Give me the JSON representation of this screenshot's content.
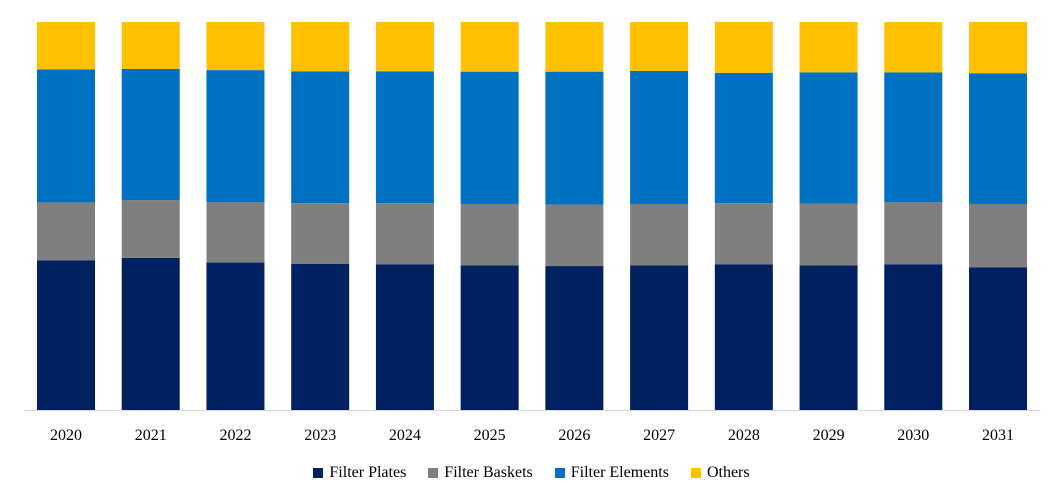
{
  "chart_data": {
    "type": "bar",
    "stacked": true,
    "normalized": true,
    "title": "",
    "xlabel": "",
    "ylabel": "",
    "ylim": [
      0,
      100
    ],
    "grid": false,
    "legend_position": "bottom",
    "categories": [
      "2020",
      "2021",
      "2022",
      "2023",
      "2024",
      "2025",
      "2026",
      "2027",
      "2028",
      "2029",
      "2030",
      "2031"
    ],
    "series": [
      {
        "name": "Filter Plates",
        "color": "#002060",
        "values": [
          38.6,
          39.2,
          38.0,
          37.7,
          37.5,
          37.3,
          37.1,
          37.3,
          37.5,
          37.3,
          37.5,
          36.8
        ]
      },
      {
        "name": "Filter Baskets",
        "color": "#7F7F7F",
        "values": [
          14.9,
          14.9,
          15.6,
          15.6,
          15.8,
          15.8,
          15.8,
          15.8,
          15.8,
          15.9,
          16.1,
          16.3
        ]
      },
      {
        "name": "Filter Elements",
        "color": "#0070C0",
        "values": [
          34.3,
          33.8,
          34.0,
          34.0,
          34.0,
          34.1,
          34.3,
          34.3,
          33.6,
          33.8,
          33.4,
          33.7
        ]
      },
      {
        "name": "Others",
        "color": "#FFC000",
        "values": [
          12.2,
          12.1,
          12.4,
          12.7,
          12.7,
          12.8,
          12.8,
          12.6,
          13.1,
          13.0,
          13.0,
          13.2
        ]
      }
    ]
  }
}
